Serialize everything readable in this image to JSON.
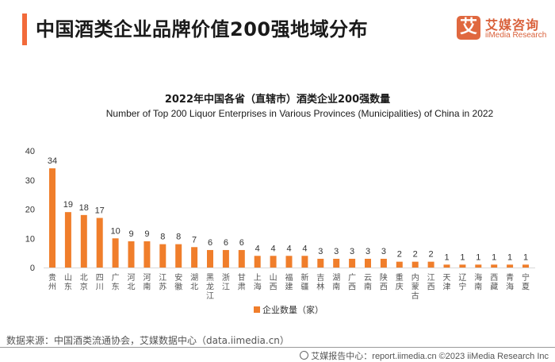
{
  "header": {
    "title": "中国酒类企业品牌价值200强地域分布",
    "logo": {
      "icon_char": "艾",
      "name_cn": "艾媒咨询",
      "name_en": "iiMedia Research"
    }
  },
  "legend": {
    "label": "企业数量（家）",
    "color": "#f07e2b"
  },
  "source": "数据来源：中国酒类流通协会，艾媒数据中心（data.iimedia.cn）",
  "footer": {
    "text": "艾媒报告中心：report.iimedia.cn   ©2023  iiMedia Research  Inc"
  },
  "chart_data": {
    "type": "bar",
    "title": "2022年中国各省（直辖市）酒类企业200强数量",
    "subtitle": "Number of Top 200 Liquor Enterprises in Various Provinces (Municipalities) of China in 2022",
    "xlabel": "",
    "ylabel": "",
    "ylim": [
      0,
      40
    ],
    "yticks": [
      0,
      10,
      20,
      30,
      40
    ],
    "grid": false,
    "legend_position": "bottom",
    "bar_color": "#f07e2b",
    "categories": [
      "贵州",
      "山东",
      "北京",
      "四川",
      "广东",
      "河北",
      "河南",
      "江苏",
      "安徽",
      "湖北",
      "黑龙江",
      "浙江",
      "甘肃",
      "上海",
      "山西",
      "福建",
      "新疆",
      "吉林",
      "湖南",
      "广西",
      "云南",
      "陕西",
      "重庆",
      "内蒙古",
      "江西",
      "天津",
      "辽宁",
      "海南",
      "西藏",
      "青海",
      "宁夏"
    ],
    "series": [
      {
        "name": "企业数量（家）",
        "values": [
          34,
          19,
          18,
          17,
          10,
          9,
          9,
          8,
          8,
          7,
          6,
          6,
          6,
          4,
          4,
          4,
          4,
          3,
          3,
          3,
          3,
          3,
          2,
          2,
          2,
          1,
          1,
          1,
          1,
          1,
          1
        ]
      }
    ]
  }
}
